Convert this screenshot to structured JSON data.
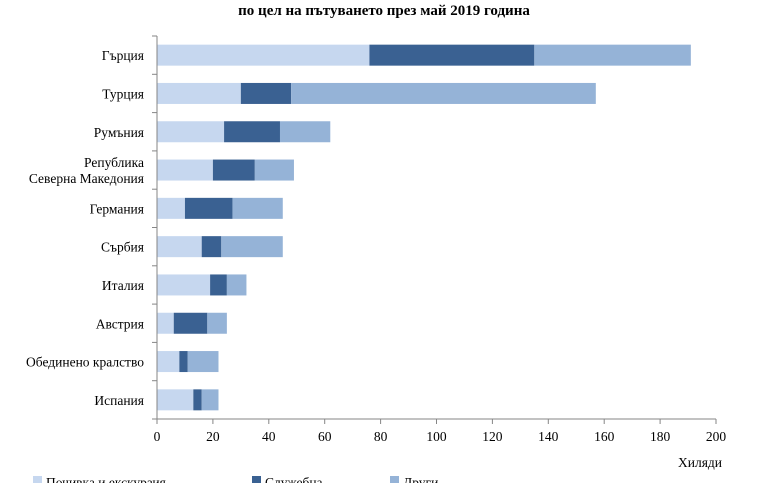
{
  "chart_data": {
    "type": "bar",
    "orientation": "horizontal",
    "stacked": true,
    "title": "по цел на пътуването през май 2019 година",
    "categories": [
      [
        "Гърция"
      ],
      [
        "Турция"
      ],
      [
        "Румъния"
      ],
      [
        "Република",
        "Северна Македония"
      ],
      [
        "Германия"
      ],
      [
        "Сърбия"
      ],
      [
        "Италия"
      ],
      [
        "Австрия"
      ],
      [
        "Обединено кралство"
      ],
      [
        "Испания"
      ]
    ],
    "series": [
      {
        "name": "Почивка и екскурзия",
        "color": "#c6d7ef",
        "values": [
          76,
          30,
          24,
          20,
          10,
          16,
          19,
          6,
          8,
          13
        ]
      },
      {
        "name": "Служебна",
        "color": "#3a6192",
        "values": [
          59,
          18,
          20,
          15,
          17,
          7,
          6,
          12,
          3,
          3
        ]
      },
      {
        "name": "Други",
        "color": "#95b3d7",
        "values": [
          56,
          109,
          18,
          14,
          18,
          22,
          7,
          7,
          11,
          6
        ]
      }
    ],
    "xlim": [
      0,
      200
    ],
    "xticks": [
      "0",
      "20",
      "40",
      "60",
      "80",
      "100",
      "120",
      "140",
      "160",
      "180",
      "200"
    ],
    "xlabel": "Хиляди",
    "legend_position": "bottom",
    "grid": false
  }
}
